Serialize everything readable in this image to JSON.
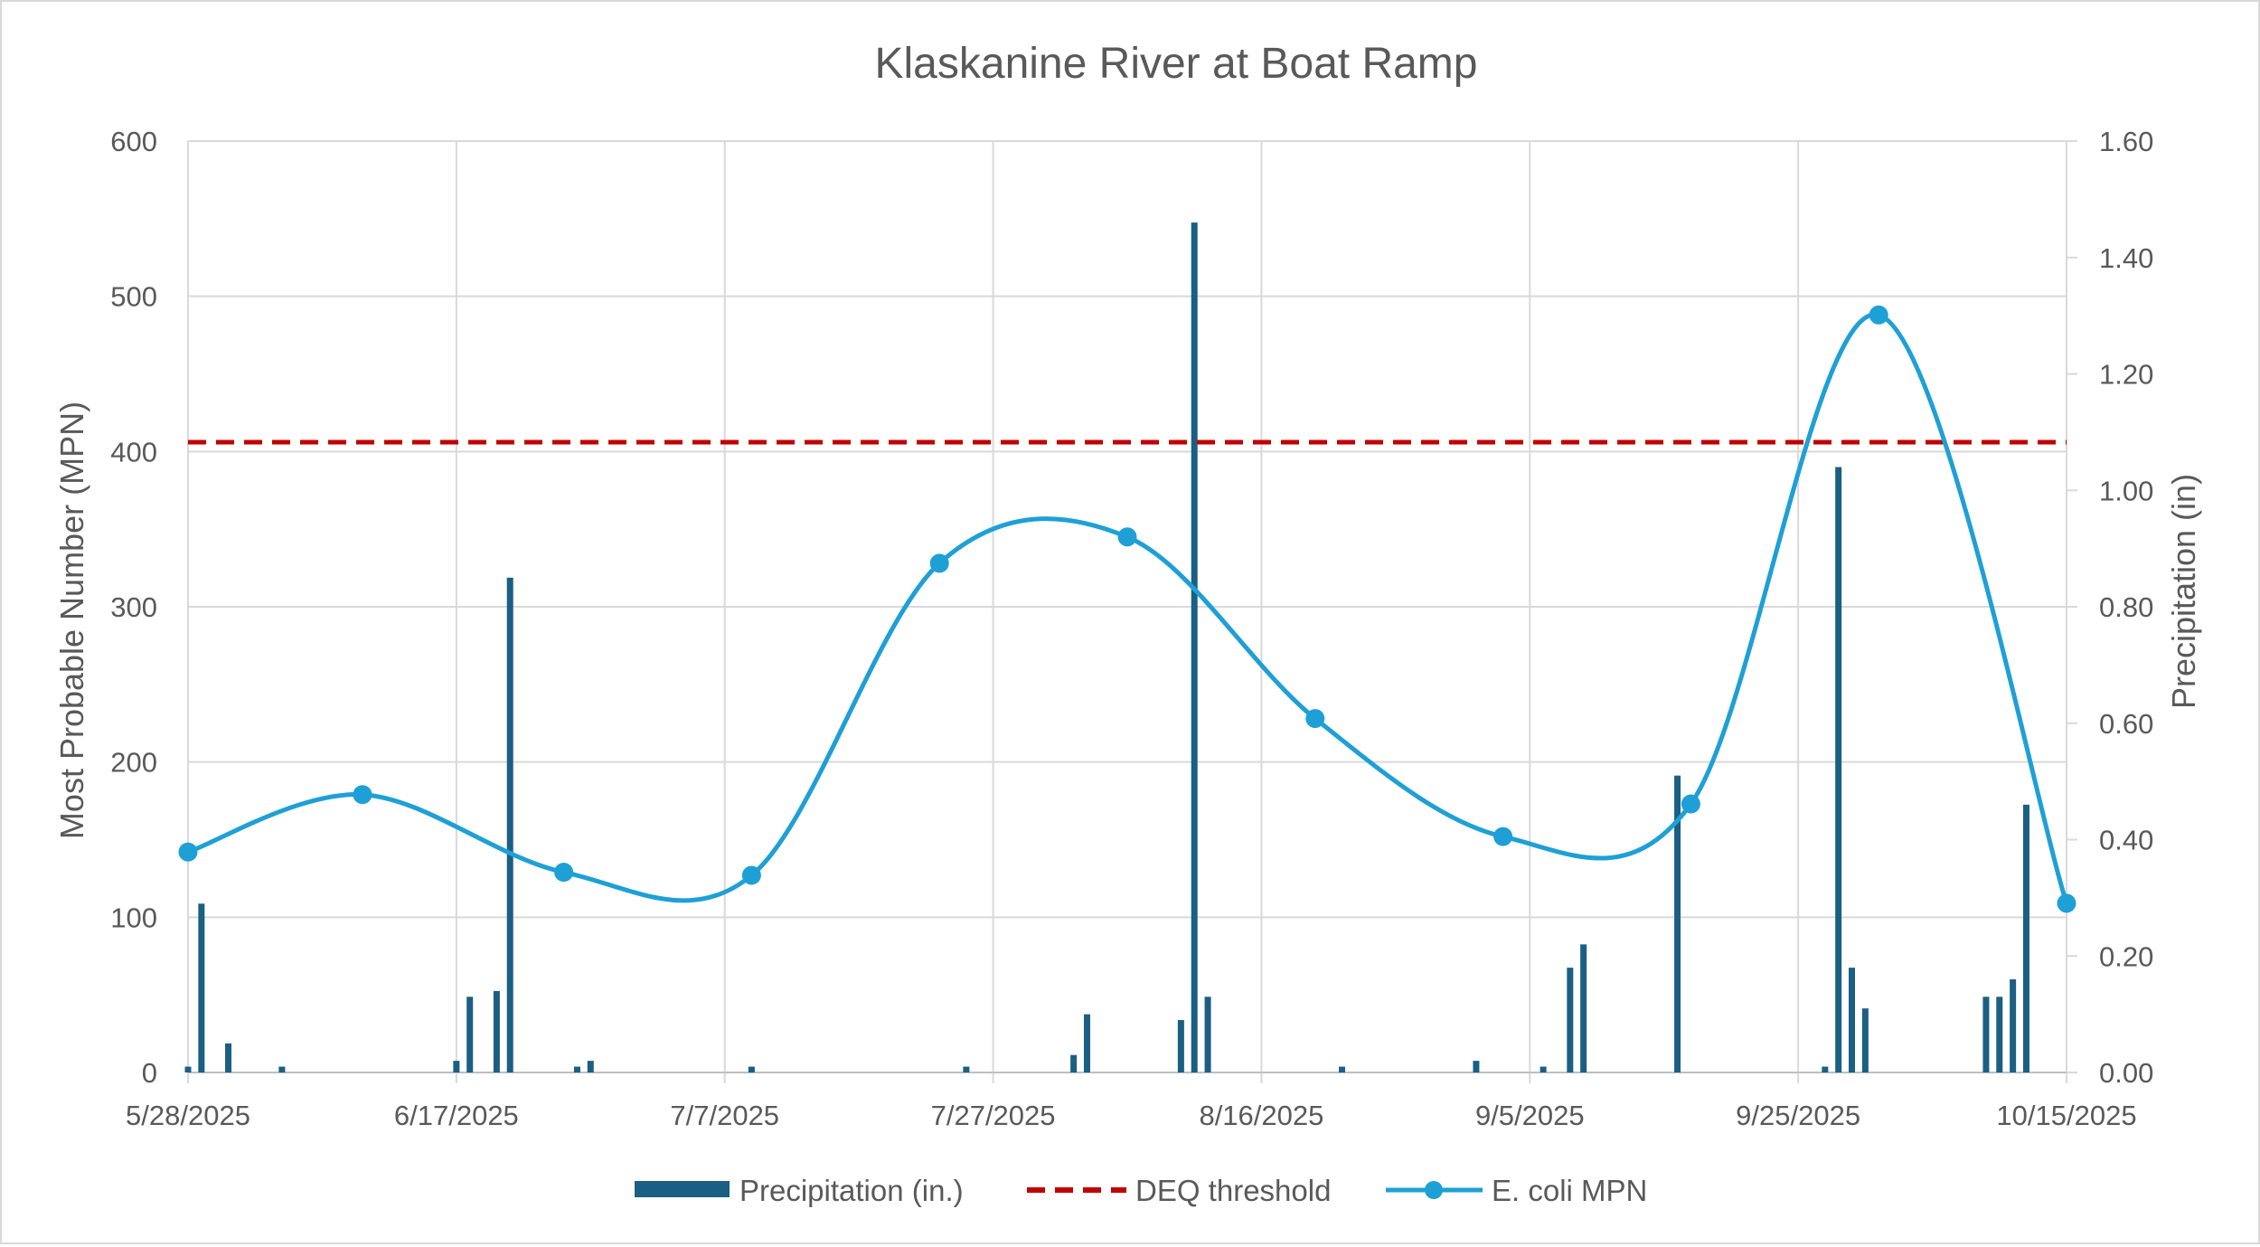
{
  "chart_data": {
    "type": "bar+line",
    "title": "Klaskanine River at Boat Ramp",
    "y_left_label": "Most Probable Number (MPN)",
    "y_right_label": "Precipitation (in)",
    "x_range": [
      "2025-05-28",
      "2025-10-15"
    ],
    "x_ticks": [
      "5/28/2025",
      "6/17/2025",
      "7/7/2025",
      "7/27/2025",
      "8/16/2025",
      "9/5/2025",
      "9/25/2025",
      "10/15/2025"
    ],
    "y_left_range": [
      0,
      600
    ],
    "y_left_ticks": [
      "0",
      "100",
      "200",
      "300",
      "400",
      "500",
      "600"
    ],
    "y_right_range": [
      0,
      1.6
    ],
    "y_right_ticks": [
      "0.00",
      "0.20",
      "0.40",
      "0.60",
      "0.80",
      "1.00",
      "1.20",
      "1.40",
      "1.60"
    ],
    "grid": true,
    "legend_position": "bottom",
    "legend": [
      "Precipitation (in.)",
      "DEQ threshold",
      "E. coli MPN"
    ],
    "colors": {
      "precipitation": "#1b5f83",
      "threshold": "#c00000",
      "ecoli": "#1ea0d6",
      "grid": "#d9d9d9",
      "text": "#595959"
    },
    "series": [
      {
        "name": "Precipitation (in.)",
        "axis": "right",
        "style": "bar",
        "points": [
          {
            "x": "2025-05-28",
            "y": 0.01
          },
          {
            "x": "2025-05-29",
            "y": 0.29
          },
          {
            "x": "2025-05-31",
            "y": 0.05
          },
          {
            "x": "2025-06-04",
            "y": 0.01
          },
          {
            "x": "2025-06-17",
            "y": 0.02
          },
          {
            "x": "2025-06-18",
            "y": 0.13
          },
          {
            "x": "2025-06-20",
            "y": 0.14
          },
          {
            "x": "2025-06-21",
            "y": 0.85
          },
          {
            "x": "2025-06-26",
            "y": 0.01
          },
          {
            "x": "2025-06-27",
            "y": 0.02
          },
          {
            "x": "2025-07-09",
            "y": 0.01
          },
          {
            "x": "2025-07-25",
            "y": 0.01
          },
          {
            "x": "2025-08-02",
            "y": 0.03
          },
          {
            "x": "2025-08-03",
            "y": 0.1
          },
          {
            "x": "2025-08-10",
            "y": 0.09
          },
          {
            "x": "2025-08-11",
            "y": 1.46
          },
          {
            "x": "2025-08-12",
            "y": 0.13
          },
          {
            "x": "2025-08-22",
            "y": 0.01
          },
          {
            "x": "2025-09-01",
            "y": 0.02
          },
          {
            "x": "2025-09-06",
            "y": 0.01
          },
          {
            "x": "2025-09-08",
            "y": 0.18
          },
          {
            "x": "2025-09-09",
            "y": 0.22
          },
          {
            "x": "2025-09-16",
            "y": 0.51
          },
          {
            "x": "2025-09-27",
            "y": 0.01
          },
          {
            "x": "2025-09-28",
            "y": 1.04
          },
          {
            "x": "2025-09-29",
            "y": 0.18
          },
          {
            "x": "2025-09-30",
            "y": 0.11
          },
          {
            "x": "2025-10-09",
            "y": 0.13
          },
          {
            "x": "2025-10-10",
            "y": 0.13
          },
          {
            "x": "2025-10-11",
            "y": 0.16
          },
          {
            "x": "2025-10-12",
            "y": 0.46
          }
        ]
      },
      {
        "name": "DEQ threshold",
        "axis": "left",
        "style": "dashed-line",
        "value": 406
      },
      {
        "name": "E. coli MPN",
        "axis": "left",
        "style": "smooth-line-markers",
        "points": [
          {
            "x": "2025-05-28",
            "y": 142
          },
          {
            "x": "2025-06-10",
            "y": 179
          },
          {
            "x": "2025-06-25",
            "y": 129
          },
          {
            "x": "2025-07-09",
            "y": 127
          },
          {
            "x": "2025-07-23",
            "y": 328
          },
          {
            "x": "2025-08-06",
            "y": 345
          },
          {
            "x": "2025-08-20",
            "y": 228
          },
          {
            "x": "2025-09-03",
            "y": 152
          },
          {
            "x": "2025-09-17",
            "y": 173
          },
          {
            "x": "2025-10-01",
            "y": 488
          },
          {
            "x": "2025-10-15",
            "y": 109
          }
        ]
      }
    ]
  }
}
